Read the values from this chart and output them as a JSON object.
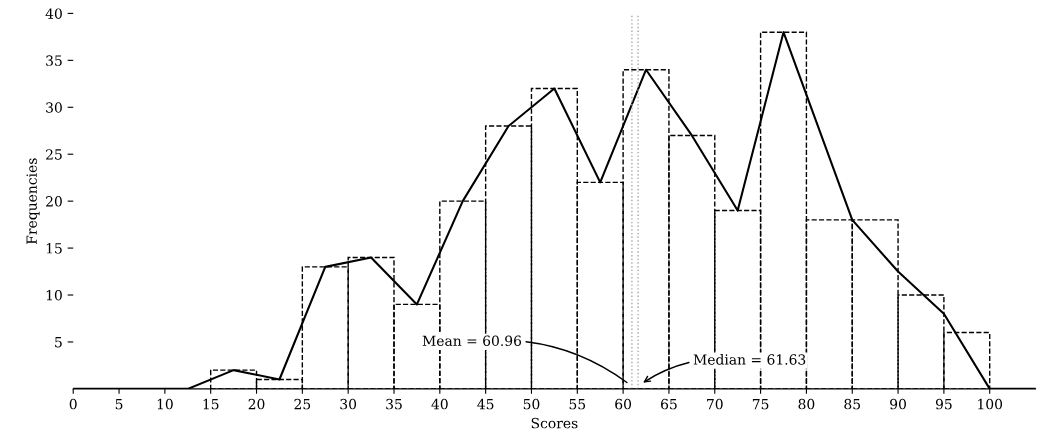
{
  "chart_data": {
    "type": "histogram",
    "xlabel": "Scores",
    "ylabel": "Frequencies",
    "bins": [
      15,
      20,
      25,
      30,
      35,
      40,
      45,
      50,
      55,
      60,
      65,
      70,
      75,
      80,
      85,
      90,
      95,
      100
    ],
    "values": [
      2,
      1,
      13,
      14,
      9,
      20,
      28,
      32,
      22,
      34,
      27,
      19,
      38,
      18,
      18,
      10,
      6
    ],
    "color": "#000000",
    "line_style": "dashed",
    "series": [
      {
        "type": "line",
        "color": "#000000",
        "line_style": "solid",
        "x": [
          0,
          12.5,
          17.5,
          22.5,
          27.5,
          32.5,
          37.5,
          42.5,
          47.5,
          52.5,
          57.5,
          62.5,
          67.5,
          72.5,
          77.5,
          85,
          90,
          95,
          100,
          105
        ],
        "values": [
          0,
          0,
          2,
          1,
          13,
          14,
          9,
          20,
          28,
          32,
          22,
          34,
          27,
          19,
          38,
          18,
          12.5,
          8,
          0,
          0
        ]
      }
    ],
    "ref_lines": [
      {
        "axis": "x",
        "value": 60.96,
        "label": "Mean = 60.96",
        "color": "#aaaaaa",
        "line_style": "dotted"
      },
      {
        "axis": "x",
        "value": 61.63,
        "label": "Median = 61.63",
        "color": "#aaaaaa",
        "line_style": "dotted"
      }
    ],
    "xlim": [
      0,
      105
    ],
    "ylim": [
      0,
      40
    ],
    "xticks": [
      0,
      5,
      10,
      15,
      20,
      25,
      30,
      35,
      40,
      45,
      50,
      55,
      60,
      65,
      70,
      75,
      80,
      85,
      90,
      95,
      100
    ],
    "yticks": [
      5,
      10,
      15,
      20,
      25,
      30,
      35,
      40
    ],
    "grid": false,
    "legend": false
  }
}
